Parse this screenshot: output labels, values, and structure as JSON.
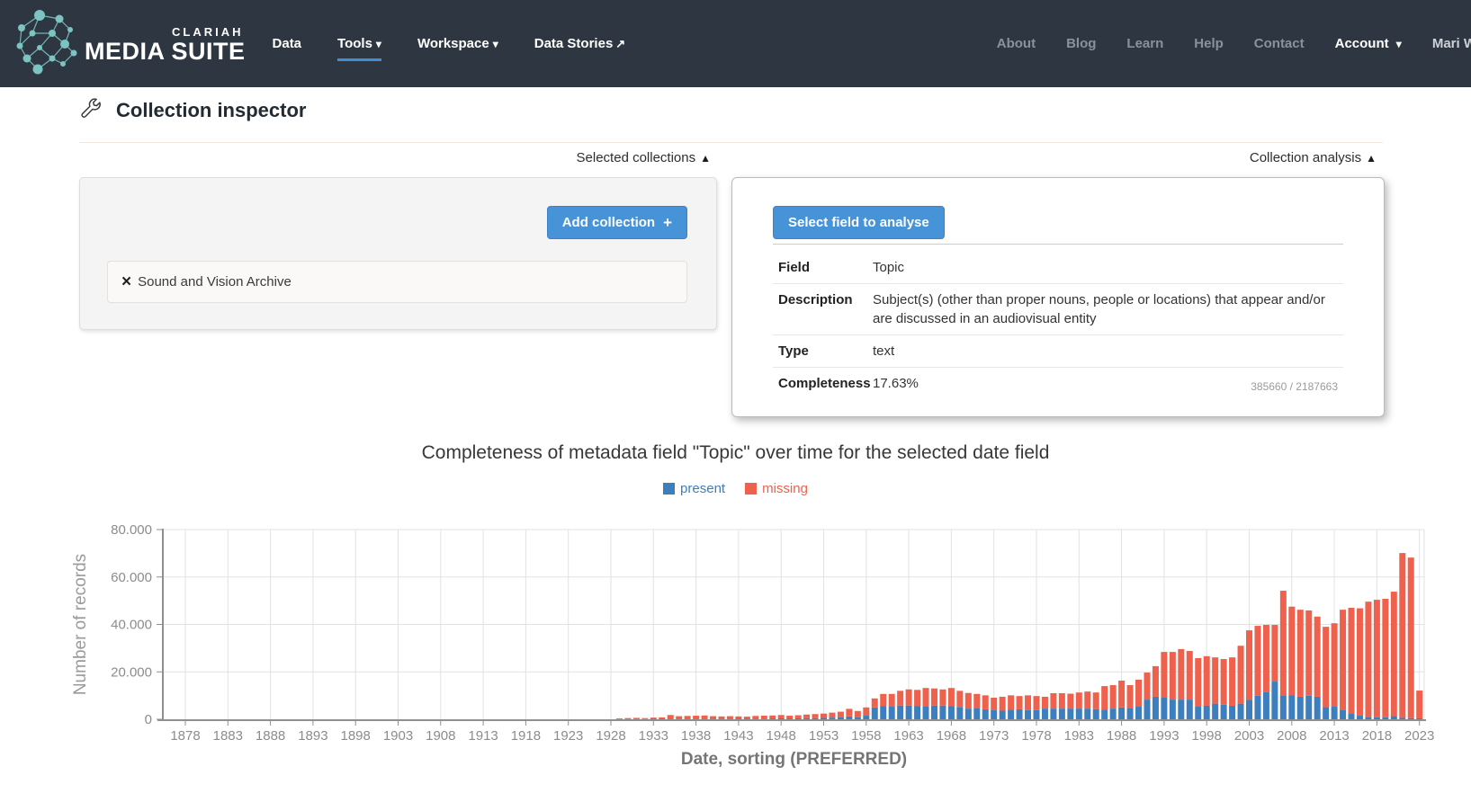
{
  "icons": {
    "chevron_down": "▾",
    "external_link": "↗",
    "collapse": "▲",
    "remove": "×",
    "plus": "+"
  },
  "navbar": {
    "brand_top": "CLARIAH",
    "brand_main": "MEDIA SUITE",
    "items": [
      {
        "label": "Data"
      },
      {
        "label": "Tools"
      },
      {
        "label": "Workspace"
      },
      {
        "label": "Data Stories"
      }
    ],
    "links": [
      "About",
      "Blog",
      "Learn",
      "Help",
      "Contact"
    ],
    "account": "Account",
    "user": "Mari W"
  },
  "page_title": "Collection inspector",
  "selected_collections": {
    "header": "Selected collections",
    "add_button": "Add collection",
    "items": [
      "Sound and Vision Archive"
    ]
  },
  "collection_analysis": {
    "header": "Collection analysis",
    "select_button": "Select field to analyse",
    "rows": [
      {
        "label": "Field",
        "value": "Topic"
      },
      {
        "label": "Description",
        "value": "Subject(s) (other than proper nouns, people or locations) that appear and/or are discussed in an audiovisual entity"
      },
      {
        "label": "Type",
        "value": "text"
      },
      {
        "label": "Completeness",
        "value": "17.63%",
        "note": "385660 / 2187663"
      }
    ]
  },
  "chart_data": {
    "type": "bar",
    "stacked": true,
    "title": "Completeness of metadata field \"Topic\" over time for the selected date field",
    "xlabel": "Date, sorting (PREFERRED)",
    "ylabel": "Number of records",
    "ylim": [
      0,
      80000
    ],
    "grid": true,
    "legend_position": "top-center",
    "year_range": [
      1878,
      2023
    ],
    "xticks": [
      1878,
      1883,
      1888,
      1893,
      1898,
      1903,
      1908,
      1913,
      1918,
      1923,
      1928,
      1933,
      1938,
      1943,
      1948,
      1953,
      1958,
      1963,
      1968,
      1973,
      1978,
      1983,
      1988,
      1993,
      1998,
      2003,
      2008,
      2013,
      2018,
      2023
    ],
    "ytick_values": [
      0,
      20000,
      40000,
      60000,
      80000
    ],
    "ytick_labels": [
      "0",
      "20.000",
      "40.000",
      "60.000",
      "80.000"
    ],
    "legend": [
      {
        "label": "present",
        "color": "#3d7ebf"
      },
      {
        "label": "missing",
        "color": "#f0614d"
      }
    ],
    "series": [
      {
        "name": "present",
        "color": "#3d7ebf",
        "values": [
          0,
          0,
          0,
          0,
          0,
          0,
          0,
          0,
          0,
          0,
          0,
          0,
          0,
          0,
          0,
          0,
          0,
          0,
          0,
          0,
          0,
          0,
          0,
          0,
          0,
          0,
          0,
          0,
          0,
          0,
          0,
          0,
          0,
          0,
          0,
          0,
          0,
          0,
          0,
          0,
          0,
          0,
          0,
          0,
          0,
          0,
          0,
          0,
          0,
          0,
          0,
          100,
          150,
          150,
          100,
          200,
          200,
          300,
          250,
          300,
          300,
          300,
          250,
          250,
          250,
          200,
          200,
          300,
          300,
          350,
          400,
          350,
          400,
          500,
          500,
          600,
          700,
          900,
          1200,
          900,
          1500,
          5000,
          5500,
          5300,
          5800,
          5800,
          5500,
          5600,
          5800,
          5800,
          5500,
          5200,
          4500,
          4800,
          4200,
          3800,
          3600,
          4000,
          4200,
          3900,
          3900,
          4500,
          4500,
          4500,
          4500,
          4500,
          4500,
          4300,
          4000,
          4500,
          5000,
          4800,
          5300,
          8300,
          9500,
          9100,
          8300,
          8300,
          8300,
          5300,
          5700,
          6600,
          6100,
          5700,
          6600,
          8200,
          9900,
          11400,
          15900,
          10100,
          10200,
          9500,
          9900,
          9500,
          5100,
          5300,
          3800,
          2500,
          1500,
          1000,
          800,
          800,
          1300,
          600,
          500,
          400
        ]
      },
      {
        "name": "missing",
        "color": "#f0614d",
        "values": [
          0,
          0,
          0,
          0,
          0,
          0,
          0,
          0,
          0,
          0,
          0,
          0,
          0,
          0,
          0,
          0,
          0,
          0,
          0,
          0,
          0,
          0,
          0,
          0,
          0,
          0,
          0,
          0,
          0,
          0,
          0,
          0,
          0,
          0,
          0,
          0,
          0,
          0,
          0,
          0,
          0,
          0,
          0,
          0,
          0,
          0,
          0,
          0,
          0,
          0,
          0,
          300,
          350,
          450,
          400,
          500,
          600,
          1500,
          1050,
          1100,
          1200,
          1300,
          1050,
          950,
          1050,
          1000,
          900,
          1100,
          1200,
          1250,
          1400,
          1150,
          1300,
          1500,
          1700,
          1800,
          2100,
          2300,
          3200,
          2600,
          3500,
          3800,
          5200,
          5400,
          6200,
          6800,
          6900,
          7600,
          7200,
          6800,
          7700,
          6800,
          6600,
          5900,
          5900,
          5300,
          5900,
          6100,
          5600,
          6200,
          5900,
          5000,
          6500,
          6500,
          6300,
          6800,
          7200,
          7000,
          10000,
          9900,
          11300,
          9600,
          11400,
          11400,
          12900,
          19300,
          20100,
          21300,
          20500,
          20500,
          20900,
          19500,
          19300,
          20400,
          24400,
          29300,
          29500,
          28400,
          23900,
          44100,
          37300,
          36700,
          36000,
          33800,
          33900,
          35200,
          42400,
          44500,
          45300,
          48600,
          49600,
          50000,
          52500,
          69500,
          67700,
          11700
        ]
      }
    ]
  }
}
